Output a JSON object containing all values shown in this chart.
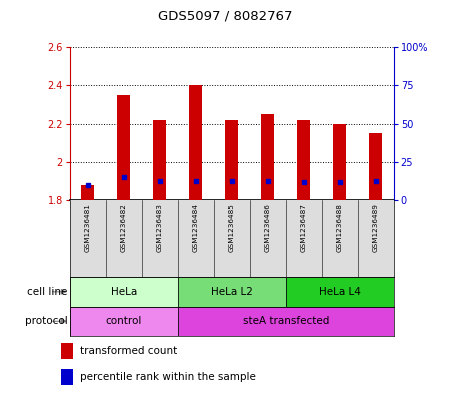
{
  "title": "GDS5097 / 8082767",
  "samples": [
    "GSM1236481",
    "GSM1236482",
    "GSM1236483",
    "GSM1236484",
    "GSM1236485",
    "GSM1236486",
    "GSM1236487",
    "GSM1236488",
    "GSM1236489"
  ],
  "transformed_counts": [
    1.88,
    2.35,
    2.22,
    2.4,
    2.22,
    2.25,
    2.22,
    2.2,
    2.15
  ],
  "percentile_ranks": [
    10,
    15,
    13,
    13,
    13,
    13,
    12,
    12,
    13
  ],
  "ylim_left": [
    1.8,
    2.6
  ],
  "ylim_right": [
    0,
    100
  ],
  "yticks_left": [
    1.8,
    2.0,
    2.2,
    2.4,
    2.6
  ],
  "yticks_right": [
    0,
    25,
    50,
    75,
    100
  ],
  "ytick_labels_left": [
    "1.8",
    "2",
    "2.2",
    "2.4",
    "2.6"
  ],
  "ytick_labels_right": [
    "0",
    "25",
    "50",
    "75",
    "100%"
  ],
  "left_axis_color": "#cc0000",
  "right_axis_color": "#0000cc",
  "bar_color": "#cc0000",
  "blue_marker_color": "#0000cc",
  "cell_line_groups": [
    {
      "label": "HeLa",
      "start": 0,
      "end": 3,
      "color": "#ccffcc"
    },
    {
      "label": "HeLa L2",
      "start": 3,
      "end": 6,
      "color": "#77dd77"
    },
    {
      "label": "HeLa L4",
      "start": 6,
      "end": 9,
      "color": "#22cc22"
    }
  ],
  "protocol_groups": [
    {
      "label": "control",
      "start": 0,
      "end": 3,
      "color": "#ee88ee"
    },
    {
      "label": "steA transfected",
      "start": 3,
      "end": 9,
      "color": "#dd44dd"
    }
  ],
  "legend_items": [
    {
      "label": "transformed count",
      "color": "#cc0000"
    },
    {
      "label": "percentile rank within the sample",
      "color": "#0000cc"
    }
  ],
  "sample_bg_color": "#dddddd",
  "plot_bg_color": "#ffffff",
  "bar_width": 0.35
}
